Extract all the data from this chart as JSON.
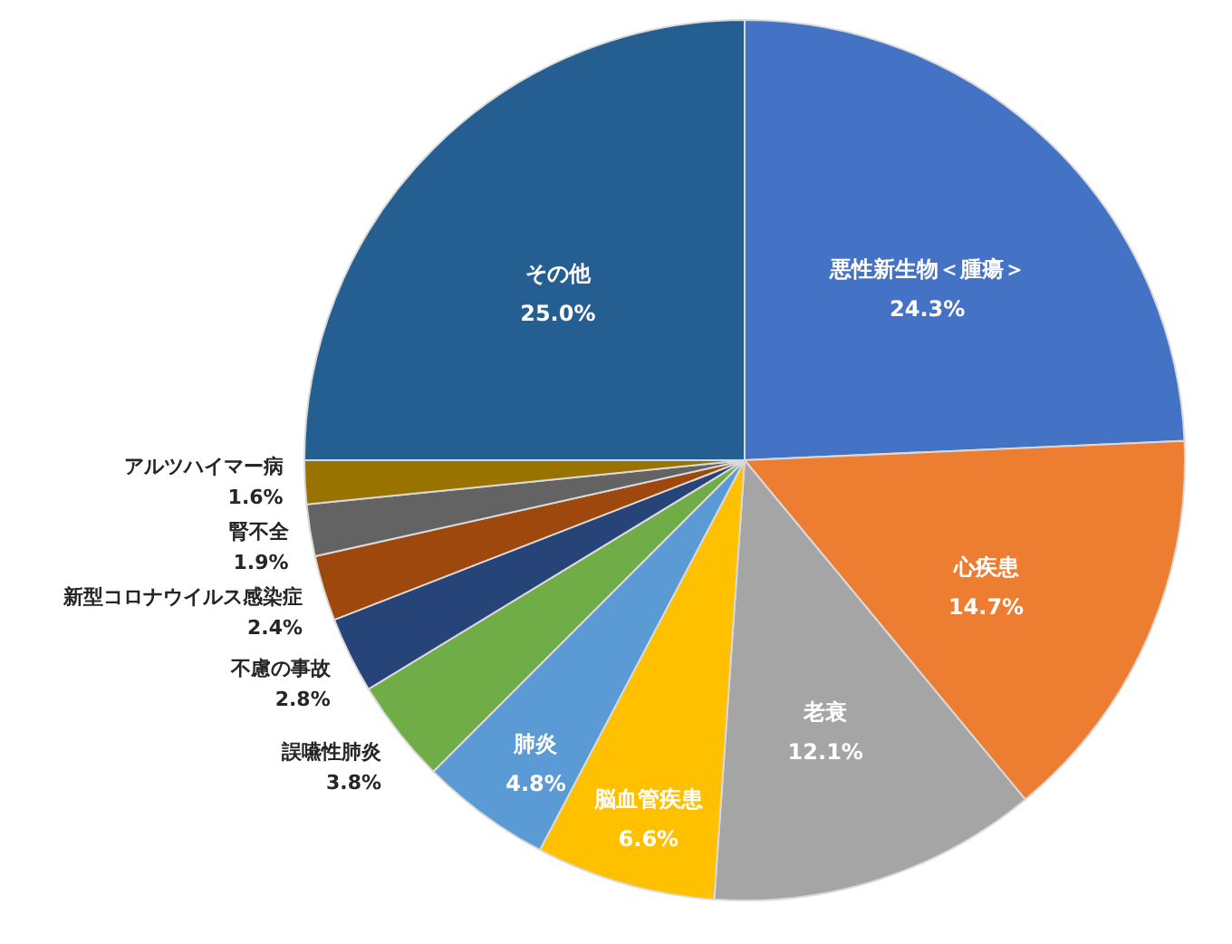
{
  "chart_data": {
    "type": "pie",
    "categories": [
      "悪性新生物＜腫瘍＞",
      "心疾患",
      "老衰",
      "脳血管疾患",
      "肺炎",
      "誤嚥性肺炎",
      "不慮の事故",
      "新型コロナウイルス感染症",
      "腎不全",
      "アルツハイマー病",
      "その他"
    ],
    "values": [
      24.3,
      14.7,
      12.1,
      6.6,
      4.8,
      3.8,
      2.8,
      2.4,
      1.9,
      1.6,
      25.0
    ],
    "colors": [
      "#4472c4",
      "#ed7d31",
      "#a5a5a5",
      "#ffc000",
      "#5b9bd5",
      "#70ad47",
      "#264478",
      "#9e480e",
      "#636363",
      "#997300",
      "#255e91"
    ],
    "value_labels": [
      "24.3%",
      "14.7%",
      "12.1%",
      "6.6%",
      "4.8%",
      "3.8%",
      "2.8%",
      "2.4%",
      "1.9%",
      "1.6%",
      "25.0%"
    ]
  }
}
